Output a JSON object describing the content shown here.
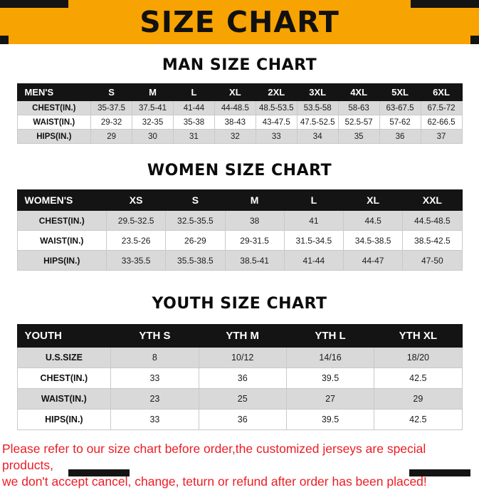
{
  "banner": {
    "title": "SIZE CHART",
    "bg_color": "#F7A301"
  },
  "colors": {
    "table_header_bg": "#141414",
    "stripe_row": "#D9D9D9",
    "notice_text": "#EC1C24"
  },
  "sections": [
    {
      "title": "MAN SIZE CHART",
      "table": {
        "header": [
          "MEN'S",
          "S",
          "M",
          "L",
          "XL",
          "2XL",
          "3XL",
          "4XL",
          "5XL",
          "6XL"
        ],
        "rows": [
          [
            "CHEST(IN.)",
            "35-37.5",
            "37.5-41",
            "41-44",
            "44-48.5",
            "48.5-53.5",
            "53.5-58",
            "58-63",
            "63-67.5",
            "67.5-72"
          ],
          [
            "WAIST(IN.)",
            "29-32",
            "32-35",
            "35-38",
            "38-43",
            "43-47.5",
            "47.5-52.5",
            "52.5-57",
            "57-62",
            "62-66.5"
          ],
          [
            "HIPS(IN.)",
            "29",
            "30",
            "31",
            "32",
            "33",
            "34",
            "35",
            "36",
            "37"
          ]
        ]
      }
    },
    {
      "title": "WOMEN SIZE CHART",
      "table": {
        "header": [
          "WOMEN'S",
          "XS",
          "S",
          "M",
          "L",
          "XL",
          "XXL"
        ],
        "rows": [
          [
            "CHEST(IN.)",
            "29.5-32.5",
            "32.5-35.5",
            "38",
            "41",
            "44.5",
            "44.5-48.5"
          ],
          [
            "WAIST(IN.)",
            "23.5-26",
            "26-29",
            "29-31.5",
            "31.5-34.5",
            "34.5-38.5",
            "38.5-42.5"
          ],
          [
            "HIPS(IN.)",
            "33-35.5",
            "35.5-38.5",
            "38.5-41",
            "41-44",
            "44-47",
            "47-50"
          ]
        ]
      }
    },
    {
      "title": "YOUTH SIZE CHART",
      "table": {
        "header": [
          "YOUTH",
          "YTH S",
          "YTH M",
          "YTH L",
          "YTH XL"
        ],
        "rows": [
          [
            "U.S.SIZE",
            "8",
            "10/12",
            "14/16",
            "18/20"
          ],
          [
            "CHEST(IN.)",
            "33",
            "36",
            "39.5",
            "42.5"
          ],
          [
            "WAIST(IN.)",
            "23",
            "25",
            "27",
            "29"
          ],
          [
            "HIPS(IN.)",
            "33",
            "36",
            "39.5",
            "42.5"
          ]
        ]
      }
    }
  ],
  "footer": {
    "lines": [
      "Please refer to our size chart before order,the customized jerseys are special products,",
      "we don't accept cancel, change, teturn or refund after order has been placed!"
    ]
  }
}
